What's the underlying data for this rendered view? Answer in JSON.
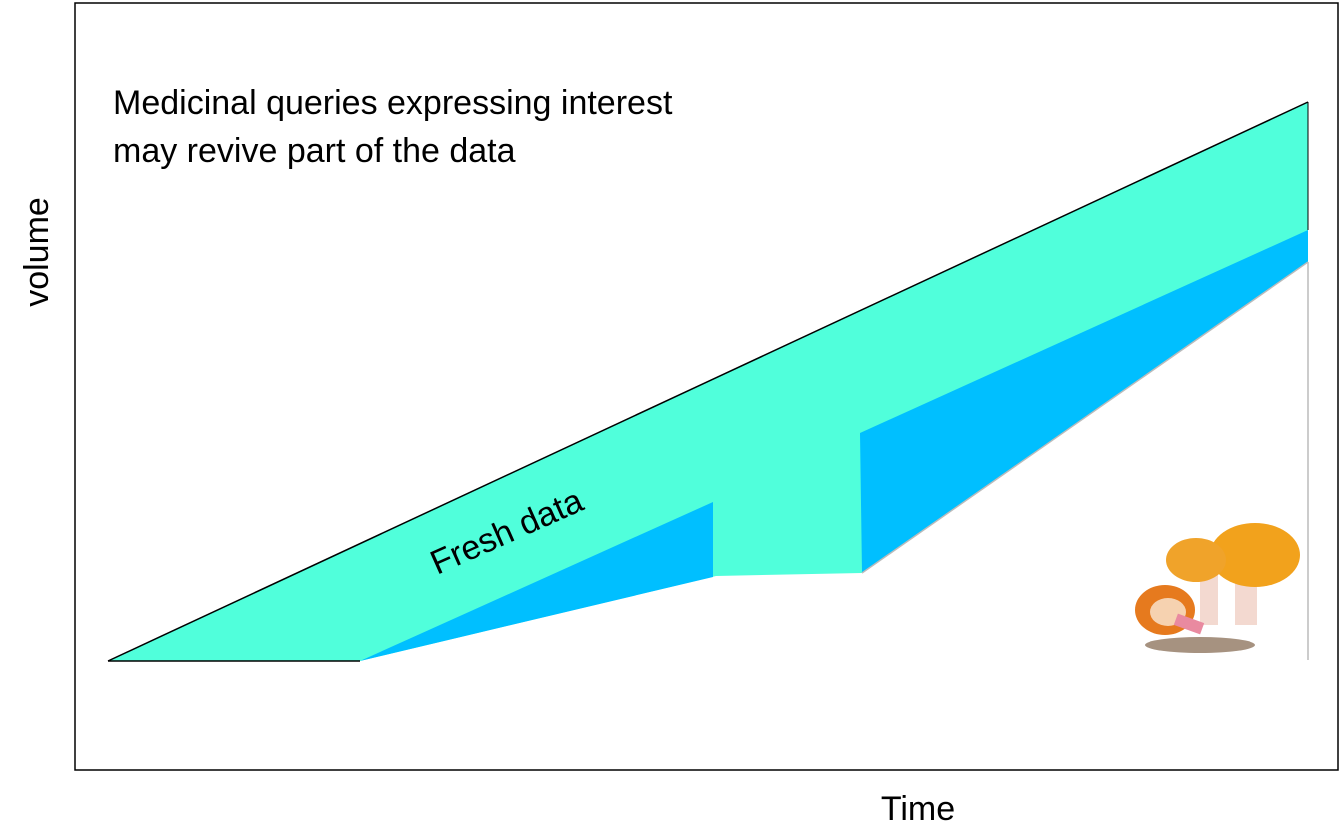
{
  "annotation": {
    "lines": [
      "Medicinal queries expressing interest",
      "may revive part of the data"
    ]
  },
  "band_label": "Fresh data",
  "y_axis_label": "volume",
  "x_axis_label": "Time"
}
